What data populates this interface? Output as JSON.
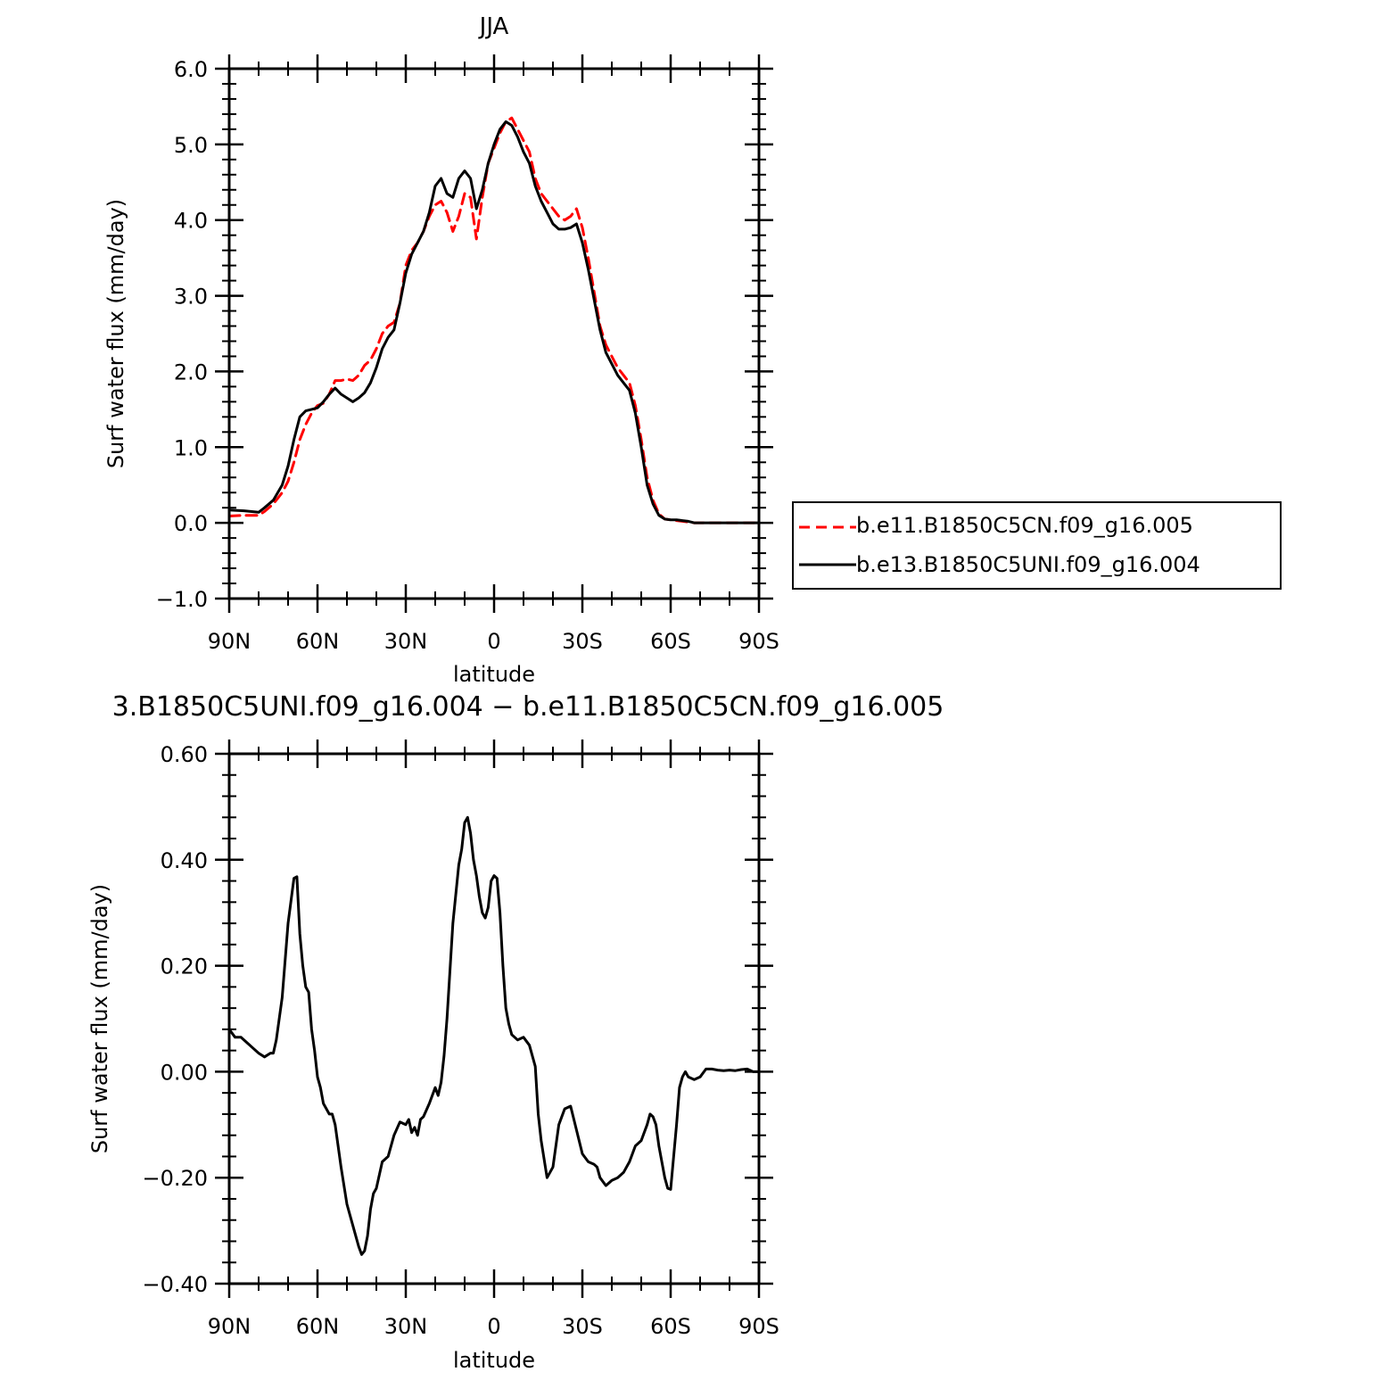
{
  "chart_data": [
    {
      "type": "line",
      "title": "JJA",
      "xlabel": "latitude",
      "ylabel": "Surf water flux (mm/day)",
      "xlim": [
        90,
        -90
      ],
      "ylim": [
        -1.0,
        6.0
      ],
      "yticks": [
        -1.0,
        0.0,
        1.0,
        2.0,
        3.0,
        4.0,
        5.0,
        6.0
      ],
      "ytick_labels": [
        "−1.0",
        "0.0",
        "1.0",
        "2.0",
        "3.0",
        "4.0",
        "5.0",
        "6.0"
      ],
      "xticks": [
        90,
        60,
        30,
        0,
        -30,
        -60,
        -90
      ],
      "xtick_labels": [
        "90N",
        "60N",
        "30N",
        "0",
        "30S",
        "60S",
        "90S"
      ],
      "legend_position": "right",
      "series": [
        {
          "name": "b.e11.B1850C5CN.f09_g16.005",
          "color": "#ff0000",
          "dash": "dashed",
          "x": [
            90,
            85,
            80,
            78,
            75,
            72,
            70,
            68,
            66,
            64,
            62,
            60,
            58,
            56,
            54,
            52,
            50,
            48,
            46,
            44,
            42,
            40,
            38,
            36,
            34,
            32,
            30,
            28,
            26,
            24,
            22,
            20,
            18,
            16,
            14,
            12,
            10,
            8,
            6,
            4,
            2,
            0,
            -2,
            -4,
            -6,
            -8,
            -10,
            -12,
            -14,
            -16,
            -18,
            -20,
            -22,
            -24,
            -26,
            -28,
            -30,
            -32,
            -34,
            -36,
            -38,
            -40,
            -42,
            -44,
            -46,
            -48,
            -50,
            -52,
            -54,
            -56,
            -58,
            -60,
            -62,
            -64,
            -66,
            -68,
            -70,
            -72,
            -75,
            -78,
            -80,
            -85,
            -90
          ],
          "values": [
            0.09,
            0.1,
            0.1,
            0.15,
            0.25,
            0.4,
            0.55,
            0.8,
            1.1,
            1.3,
            1.45,
            1.55,
            1.58,
            1.7,
            1.88,
            1.88,
            1.9,
            1.88,
            1.95,
            2.08,
            2.15,
            2.3,
            2.5,
            2.6,
            2.65,
            2.9,
            3.4,
            3.6,
            3.7,
            3.85,
            4.05,
            4.2,
            4.25,
            4.1,
            3.85,
            4.05,
            4.35,
            4.3,
            3.75,
            4.3,
            4.75,
            4.95,
            5.15,
            5.3,
            5.35,
            5.2,
            5.05,
            4.9,
            4.55,
            4.35,
            4.25,
            4.15,
            4.05,
            4.0,
            4.05,
            4.15,
            3.9,
            3.5,
            3.05,
            2.6,
            2.35,
            2.2,
            2.05,
            1.95,
            1.85,
            1.55,
            1.1,
            0.6,
            0.3,
            0.12,
            0.05,
            0.04,
            0.03,
            0.02,
            0.01,
            0.0,
            0.0,
            0.0,
            0.0,
            0.0,
            0.0,
            0.0,
            0.0
          ]
        },
        {
          "name": "b.e13.B1850C5UNI.f09_g16.004",
          "color": "#000000",
          "dash": "solid",
          "x": [
            90,
            85,
            80,
            78,
            75,
            72,
            70,
            68,
            66,
            64,
            62,
            60,
            58,
            56,
            54,
            52,
            50,
            48,
            46,
            44,
            42,
            40,
            38,
            36,
            34,
            32,
            30,
            28,
            26,
            24,
            22,
            20,
            18,
            16,
            14,
            12,
            10,
            8,
            6,
            4,
            2,
            0,
            -2,
            -4,
            -6,
            -8,
            -10,
            -12,
            -14,
            -16,
            -18,
            -20,
            -22,
            -24,
            -26,
            -28,
            -30,
            -32,
            -34,
            -36,
            -38,
            -40,
            -42,
            -44,
            -46,
            -48,
            -50,
            -52,
            -54,
            -56,
            -58,
            -60,
            -62,
            -64,
            -66,
            -68,
            -70,
            -72,
            -75,
            -78,
            -80,
            -85,
            -90
          ],
          "values": [
            0.17,
            0.16,
            0.14,
            0.2,
            0.3,
            0.5,
            0.75,
            1.1,
            1.4,
            1.48,
            1.5,
            1.52,
            1.6,
            1.7,
            1.78,
            1.7,
            1.65,
            1.6,
            1.65,
            1.72,
            1.85,
            2.05,
            2.3,
            2.45,
            2.55,
            2.9,
            3.3,
            3.55,
            3.7,
            3.85,
            4.1,
            4.45,
            4.55,
            4.35,
            4.3,
            4.55,
            4.65,
            4.55,
            4.15,
            4.4,
            4.75,
            5.0,
            5.2,
            5.3,
            5.25,
            5.1,
            4.9,
            4.75,
            4.45,
            4.25,
            4.1,
            3.95,
            3.88,
            3.88,
            3.9,
            3.95,
            3.7,
            3.35,
            2.95,
            2.55,
            2.25,
            2.1,
            1.95,
            1.85,
            1.75,
            1.45,
            1.0,
            0.5,
            0.25,
            0.1,
            0.05,
            0.04,
            0.04,
            0.03,
            0.02,
            0.0,
            0.0,
            0.0,
            0.0,
            0.0,
            0.0,
            0.0,
            0.0
          ]
        }
      ]
    },
    {
      "type": "line",
      "title": "3.B1850C5UNI.f09_g16.004 − b.e11.B1850C5CN.f09_g16.005",
      "xlabel": "latitude",
      "ylabel": "Surf water flux (mm/day)",
      "xlim": [
        90,
        -90
      ],
      "ylim": [
        -0.4,
        0.6
      ],
      "yticks": [
        -0.4,
        -0.2,
        0.0,
        0.2,
        0.4,
        0.6
      ],
      "ytick_labels": [
        "−0.40",
        "−0.20",
        "0.00",
        "0.20",
        "0.40",
        "0.60"
      ],
      "xticks": [
        90,
        60,
        30,
        0,
        -30,
        -60,
        -90
      ],
      "xtick_labels": [
        "90N",
        "60N",
        "30N",
        "0",
        "30S",
        "60S",
        "90S"
      ],
      "series": [
        {
          "color": "#000000",
          "dash": "solid",
          "x": [
            90,
            88,
            86,
            84,
            82,
            80,
            78,
            76,
            75,
            74,
            72,
            70,
            68,
            67,
            66,
            65,
            64,
            63,
            62,
            61,
            60,
            59,
            58,
            56,
            55,
            54,
            52,
            50,
            48,
            46,
            45,
            44,
            43,
            42,
            41,
            40,
            38,
            36,
            34,
            32,
            30,
            29,
            28,
            27,
            26,
            25,
            24,
            22,
            20,
            19,
            18,
            17,
            16,
            14,
            12,
            11,
            10,
            9,
            8,
            7,
            6,
            5,
            4,
            3,
            2,
            1,
            0,
            -1,
            -2,
            -3,
            -4,
            -5,
            -6,
            -8,
            -10,
            -12,
            -14,
            -15,
            -16,
            -18,
            -20,
            -22,
            -24,
            -26,
            -28,
            -30,
            -32,
            -34,
            -35,
            -36,
            -38,
            -40,
            -42,
            -44,
            -46,
            -48,
            -50,
            -52,
            -53,
            -54,
            -55,
            -56,
            -58,
            -59,
            -60,
            -62,
            -63,
            -64,
            -65,
            -66,
            -68,
            -70,
            -72,
            -74,
            -76,
            -78,
            -80,
            -82,
            -84,
            -86,
            -88,
            -90
          ],
          "values": [
            0.08,
            0.065,
            0.065,
            0.055,
            0.045,
            0.035,
            0.028,
            0.035,
            0.035,
            0.06,
            0.14,
            0.28,
            0.365,
            0.368,
            0.26,
            0.2,
            0.16,
            0.15,
            0.08,
            0.04,
            -0.01,
            -0.03,
            -0.06,
            -0.08,
            -0.08,
            -0.1,
            -0.18,
            -0.25,
            -0.29,
            -0.33,
            -0.345,
            -0.338,
            -0.31,
            -0.26,
            -0.23,
            -0.22,
            -0.17,
            -0.16,
            -0.12,
            -0.095,
            -0.1,
            -0.09,
            -0.115,
            -0.105,
            -0.12,
            -0.09,
            -0.085,
            -0.06,
            -0.03,
            -0.045,
            -0.02,
            0.03,
            0.1,
            0.28,
            0.39,
            0.42,
            0.47,
            0.48,
            0.45,
            0.4,
            0.37,
            0.33,
            0.3,
            0.29,
            0.31,
            0.36,
            0.37,
            0.365,
            0.3,
            0.2,
            0.12,
            0.09,
            0.07,
            0.06,
            0.065,
            0.05,
            0.01,
            -0.08,
            -0.13,
            -0.2,
            -0.18,
            -0.1,
            -0.07,
            -0.065,
            -0.11,
            -0.155,
            -0.17,
            -0.175,
            -0.18,
            -0.2,
            -0.215,
            -0.205,
            -0.2,
            -0.19,
            -0.17,
            -0.14,
            -0.13,
            -0.1,
            -0.08,
            -0.085,
            -0.1,
            -0.14,
            -0.2,
            -0.22,
            -0.222,
            -0.1,
            -0.03,
            -0.01,
            0.0,
            -0.01,
            -0.015,
            -0.01,
            0.005,
            0.005,
            0.003,
            0.002,
            0.003,
            0.002,
            0.004,
            0.005,
            0.0,
            0.0
          ]
        }
      ]
    }
  ]
}
